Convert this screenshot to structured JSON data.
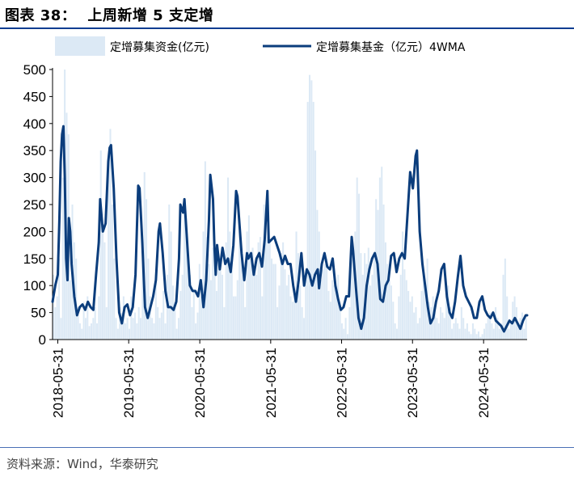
{
  "header": {
    "figure_label": "图表 38：",
    "title": "上周新增 5 支定增"
  },
  "footer": {
    "source": "资料来源：Wind，华泰研究"
  },
  "colors": {
    "bar": "#dce9f5",
    "line": "#0b3d7c",
    "rule": "#0b3d91"
  },
  "chart_data": {
    "type": "bar",
    "title": "",
    "xlabel": "",
    "ylabel": "",
    "ylim": [
      0,
      500
    ],
    "yticks": [
      "0",
      "50",
      "100",
      "150",
      "200",
      "250",
      "300",
      "350",
      "400",
      "450",
      "500"
    ],
    "xticks": [
      "2018-05-31",
      "2019-05-31",
      "2020-05-31",
      "2021-05-31",
      "2022-05-31",
      "2023-05-31",
      "2024-05-31"
    ],
    "x_start": "2018-05-04",
    "x_end": "2025-01-10",
    "legend_position": "top",
    "series": [
      {
        "name": "定增募集资金(亿元)",
        "type": "bar",
        "sampling": "weekly",
        "values": [
          120,
          60,
          80,
          150,
          40,
          300,
          500,
          420,
          380,
          110,
          250,
          180,
          150,
          60,
          30,
          20,
          70,
          40,
          80,
          25,
          30,
          40,
          60,
          30,
          80,
          350,
          210,
          180,
          60,
          330,
          390,
          250,
          150,
          40,
          20,
          60,
          50,
          80,
          30,
          40,
          20,
          80,
          40,
          50,
          30,
          60,
          40,
          150,
          310,
          260,
          150,
          80,
          40,
          30,
          120,
          60,
          40,
          50,
          90,
          30,
          120,
          250,
          200,
          100,
          70,
          20,
          40,
          90,
          120,
          260,
          210,
          150,
          120,
          60,
          90,
          30,
          50,
          140,
          80,
          200,
          330,
          190,
          140,
          110,
          170,
          180,
          90,
          150,
          130,
          120,
          60,
          180,
          300,
          200,
          140,
          80,
          80,
          110,
          200,
          160,
          120,
          60,
          200,
          230,
          160,
          170,
          140,
          120,
          180,
          190,
          80,
          250,
          220,
          190,
          180,
          150,
          140,
          140,
          60,
          100,
          160,
          180,
          130,
          100,
          120,
          80,
          70,
          80,
          200,
          160,
          100,
          60,
          40,
          110,
          440,
          490,
          480,
          440,
          350,
          240,
          200,
          110,
          130,
          140,
          150,
          90,
          70,
          110,
          100,
          90,
          120,
          60,
          30,
          20,
          40,
          10,
          60,
          190,
          160,
          200,
          300,
          270,
          160,
          120,
          160,
          140,
          170,
          100,
          120,
          160,
          260,
          240,
          300,
          320,
          250,
          180,
          140,
          110,
          100,
          70,
          30,
          20,
          80,
          120,
          200,
          130,
          110,
          90,
          70,
          80,
          50,
          60,
          30,
          40,
          90,
          120,
          100,
          150,
          70,
          60,
          80,
          50,
          40,
          30,
          60,
          50,
          40,
          80,
          100,
          60,
          20,
          30,
          40,
          30,
          20,
          60,
          40,
          20,
          30,
          15,
          10,
          30,
          20,
          10,
          15,
          5,
          10,
          20,
          30,
          40,
          50,
          30,
          20,
          60,
          40,
          20,
          30,
          120,
          150,
          80,
          20,
          30,
          70,
          80,
          60,
          30,
          40,
          50,
          20,
          40
        ]
      },
      {
        "name": "定增募集基金（亿元）4WMA",
        "type": "line",
        "points": [
          [
            "2018-05-04",
            70
          ],
          [
            "2018-05-18",
            100
          ],
          [
            "2018-05-31",
            120
          ],
          [
            "2018-06-08",
            220
          ],
          [
            "2018-06-15",
            330
          ],
          [
            "2018-06-22",
            380
          ],
          [
            "2018-06-29",
            395
          ],
          [
            "2018-07-06",
            300
          ],
          [
            "2018-07-13",
            150
          ],
          [
            "2018-07-20",
            110
          ],
          [
            "2018-07-27",
            225
          ],
          [
            "2018-08-03",
            200
          ],
          [
            "2018-08-10",
            140
          ],
          [
            "2018-08-24",
            80
          ],
          [
            "2018-09-07",
            45
          ],
          [
            "2018-09-21",
            60
          ],
          [
            "2018-10-05",
            65
          ],
          [
            "2018-10-19",
            55
          ],
          [
            "2018-11-02",
            70
          ],
          [
            "2018-11-16",
            60
          ],
          [
            "2018-11-30",
            55
          ],
          [
            "2018-12-14",
            120
          ],
          [
            "2018-12-28",
            180
          ],
          [
            "2019-01-04",
            260
          ],
          [
            "2019-01-18",
            200
          ],
          [
            "2019-02-01",
            215
          ],
          [
            "2019-02-15",
            330
          ],
          [
            "2019-02-22",
            355
          ],
          [
            "2019-03-01",
            360
          ],
          [
            "2019-03-15",
            280
          ],
          [
            "2019-03-29",
            150
          ],
          [
            "2019-04-12",
            50
          ],
          [
            "2019-04-26",
            30
          ],
          [
            "2019-05-10",
            60
          ],
          [
            "2019-05-24",
            65
          ],
          [
            "2019-06-07",
            45
          ],
          [
            "2019-06-21",
            60
          ],
          [
            "2019-07-05",
            120
          ],
          [
            "2019-07-19",
            285
          ],
          [
            "2019-07-26",
            280
          ],
          [
            "2019-08-09",
            180
          ],
          [
            "2019-08-23",
            60
          ],
          [
            "2019-09-06",
            40
          ],
          [
            "2019-09-20",
            60
          ],
          [
            "2019-10-04",
            80
          ],
          [
            "2019-10-18",
            110
          ],
          [
            "2019-11-01",
            200
          ],
          [
            "2019-11-08",
            215
          ],
          [
            "2019-11-22",
            160
          ],
          [
            "2019-12-06",
            90
          ],
          [
            "2019-12-20",
            60
          ],
          [
            "2020-01-03",
            60
          ],
          [
            "2020-01-17",
            55
          ],
          [
            "2020-01-31",
            70
          ],
          [
            "2020-02-14",
            150
          ],
          [
            "2020-02-21",
            250
          ],
          [
            "2020-03-06",
            235
          ],
          [
            "2020-03-13",
            260
          ],
          [
            "2020-03-27",
            180
          ],
          [
            "2020-04-10",
            100
          ],
          [
            "2020-04-24",
            90
          ],
          [
            "2020-05-08",
            90
          ],
          [
            "2020-05-22",
            80
          ],
          [
            "2020-06-05",
            110
          ],
          [
            "2020-06-19",
            60
          ],
          [
            "2020-07-03",
            110
          ],
          [
            "2020-07-17",
            220
          ],
          [
            "2020-07-24",
            305
          ],
          [
            "2020-08-07",
            260
          ],
          [
            "2020-08-14",
            175
          ],
          [
            "2020-08-21",
            120
          ],
          [
            "2020-08-28",
            175
          ],
          [
            "2020-09-11",
            130
          ],
          [
            "2020-09-25",
            170
          ],
          [
            "2020-10-09",
            140
          ],
          [
            "2020-10-23",
            150
          ],
          [
            "2020-11-06",
            125
          ],
          [
            "2020-11-20",
            175
          ],
          [
            "2020-12-04",
            275
          ],
          [
            "2020-12-11",
            265
          ],
          [
            "2021-01-01",
            160
          ],
          [
            "2021-01-15",
            110
          ],
          [
            "2021-01-29",
            160
          ],
          [
            "2021-02-05",
            150
          ],
          [
            "2021-02-19",
            160
          ],
          [
            "2021-03-05",
            120
          ],
          [
            "2021-03-19",
            150
          ],
          [
            "2021-04-02",
            160
          ],
          [
            "2021-04-16",
            135
          ],
          [
            "2021-04-30",
            185
          ],
          [
            "2021-05-14",
            275
          ],
          [
            "2021-05-21",
            180
          ],
          [
            "2021-06-04",
            185
          ],
          [
            "2021-06-18",
            190
          ],
          [
            "2021-07-02",
            175
          ],
          [
            "2021-07-16",
            160
          ],
          [
            "2021-07-30",
            140
          ],
          [
            "2021-08-13",
            155
          ],
          [
            "2021-08-27",
            140
          ],
          [
            "2021-09-10",
            140
          ],
          [
            "2021-09-24",
            100
          ],
          [
            "2021-10-08",
            70
          ],
          [
            "2021-10-22",
            110
          ],
          [
            "2021-11-05",
            160
          ],
          [
            "2021-11-19",
            100
          ],
          [
            "2021-12-03",
            130
          ],
          [
            "2021-12-17",
            120
          ],
          [
            "2021-12-31",
            100
          ],
          [
            "2022-01-14",
            120
          ],
          [
            "2022-01-28",
            130
          ],
          [
            "2022-02-04",
            95
          ],
          [
            "2022-02-18",
            140
          ],
          [
            "2022-03-04",
            160
          ],
          [
            "2022-03-18",
            135
          ],
          [
            "2022-04-01",
            130
          ],
          [
            "2022-04-15",
            150
          ],
          [
            "2022-04-29",
            100
          ],
          [
            "2022-05-13",
            75
          ],
          [
            "2022-05-27",
            55
          ],
          [
            "2022-06-10",
            60
          ],
          [
            "2022-06-24",
            80
          ],
          [
            "2022-07-08",
            80
          ],
          [
            "2022-07-22",
            190
          ],
          [
            "2022-07-29",
            165
          ],
          [
            "2022-08-12",
            100
          ],
          [
            "2022-08-26",
            40
          ],
          [
            "2022-09-09",
            20
          ],
          [
            "2022-09-23",
            40
          ],
          [
            "2022-10-07",
            100
          ],
          [
            "2022-10-21",
            130
          ],
          [
            "2022-11-04",
            150
          ],
          [
            "2022-11-18",
            160
          ],
          [
            "2022-12-02",
            140
          ],
          [
            "2022-12-16",
            75
          ],
          [
            "2022-12-30",
            70
          ],
          [
            "2023-01-13",
            100
          ],
          [
            "2023-01-27",
            110
          ],
          [
            "2023-02-10",
            155
          ],
          [
            "2023-02-24",
            160
          ],
          [
            "2023-03-10",
            125
          ],
          [
            "2023-03-24",
            150
          ],
          [
            "2023-04-07",
            160
          ],
          [
            "2023-04-21",
            150
          ],
          [
            "2023-05-05",
            230
          ],
          [
            "2023-05-19",
            310
          ],
          [
            "2023-06-02",
            280
          ],
          [
            "2023-06-16",
            340
          ],
          [
            "2023-06-23",
            350
          ],
          [
            "2023-07-07",
            200
          ],
          [
            "2023-07-21",
            140
          ],
          [
            "2023-08-04",
            100
          ],
          [
            "2023-08-18",
            60
          ],
          [
            "2023-09-01",
            30
          ],
          [
            "2023-09-15",
            40
          ],
          [
            "2023-09-29",
            70
          ],
          [
            "2023-10-13",
            90
          ],
          [
            "2023-10-27",
            130
          ],
          [
            "2023-11-10",
            140
          ],
          [
            "2023-11-24",
            80
          ],
          [
            "2023-12-08",
            50
          ],
          [
            "2023-12-22",
            40
          ],
          [
            "2024-01-05",
            70
          ],
          [
            "2024-01-19",
            115
          ],
          [
            "2024-02-02",
            155
          ],
          [
            "2024-02-16",
            100
          ],
          [
            "2024-03-01",
            80
          ],
          [
            "2024-03-15",
            70
          ],
          [
            "2024-03-29",
            60
          ],
          [
            "2024-04-12",
            40
          ],
          [
            "2024-04-26",
            40
          ],
          [
            "2024-05-10",
            70
          ],
          [
            "2024-05-24",
            80
          ],
          [
            "2024-06-07",
            55
          ],
          [
            "2024-06-21",
            45
          ],
          [
            "2024-07-05",
            40
          ],
          [
            "2024-07-19",
            50
          ],
          [
            "2024-08-02",
            35
          ],
          [
            "2024-08-16",
            30
          ],
          [
            "2024-08-30",
            25
          ],
          [
            "2024-09-13",
            15
          ],
          [
            "2024-09-27",
            25
          ],
          [
            "2024-10-11",
            35
          ],
          [
            "2024-10-25",
            30
          ],
          [
            "2024-11-08",
            40
          ],
          [
            "2024-11-22",
            30
          ],
          [
            "2024-12-06",
            20
          ],
          [
            "2024-12-20",
            35
          ],
          [
            "2025-01-03",
            45
          ],
          [
            "2025-01-10",
            45
          ]
        ]
      }
    ]
  }
}
